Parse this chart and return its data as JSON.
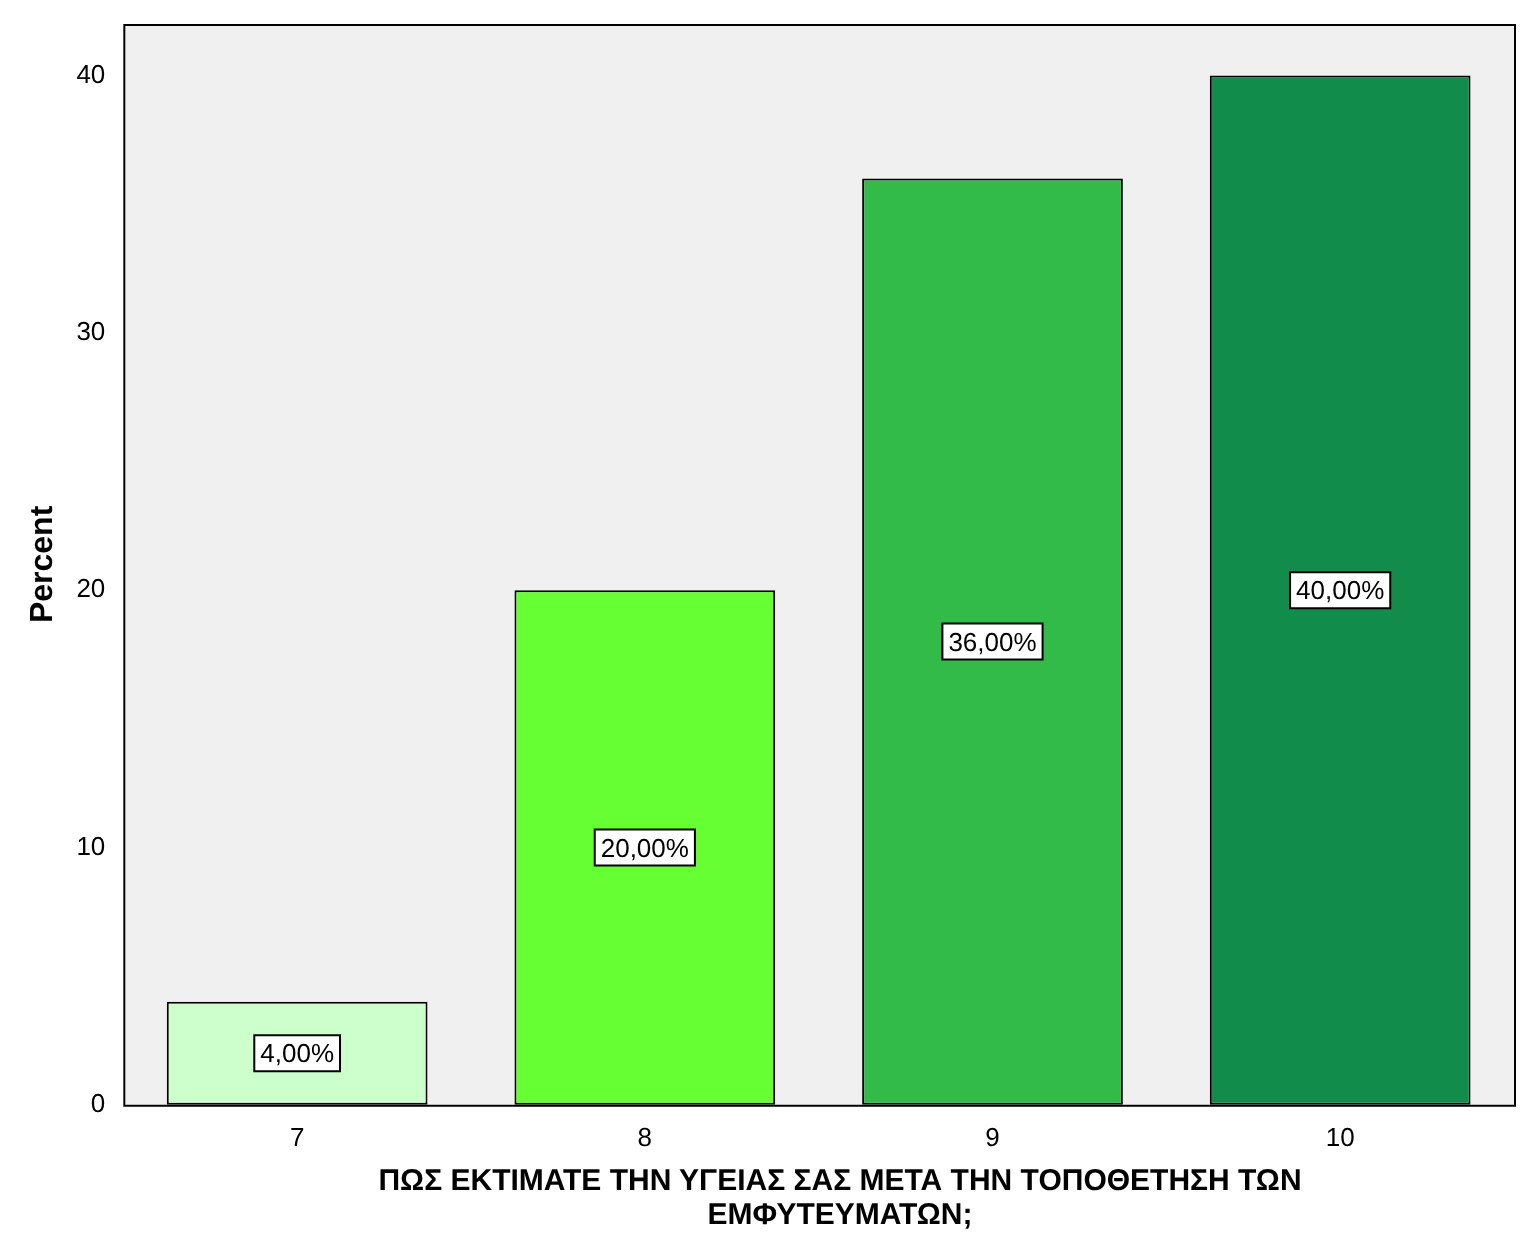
{
  "chart_data": {
    "type": "bar",
    "ylabel": "Percent",
    "xlabel": "ΠΩΣ ΕΚΤΙΜΑΤΕ ΤΗΝ ΥΓΕΙΑΣ ΣΑΣ ΜΕΤΑ ΤΗΝ ΤΟΠΟΘΕΤΗΣΗ ΤΩΝ ΕΜΦΥΤΕΥΜΑΤΩΝ;",
    "categories": [
      "7",
      "8",
      "9",
      "10"
    ],
    "values": [
      4,
      20,
      36,
      40
    ],
    "colors": [
      "#ccffcc",
      "#66ff33",
      "#33bb4a",
      "#118c4a"
    ],
    "value_labels": [
      "4,00%",
      "20,00%",
      "36,00%",
      "40,00%"
    ],
    "ylim": [
      0,
      42
    ],
    "yticks": [
      0,
      10,
      20,
      30,
      40
    ],
    "grid": false,
    "legend": false
  }
}
